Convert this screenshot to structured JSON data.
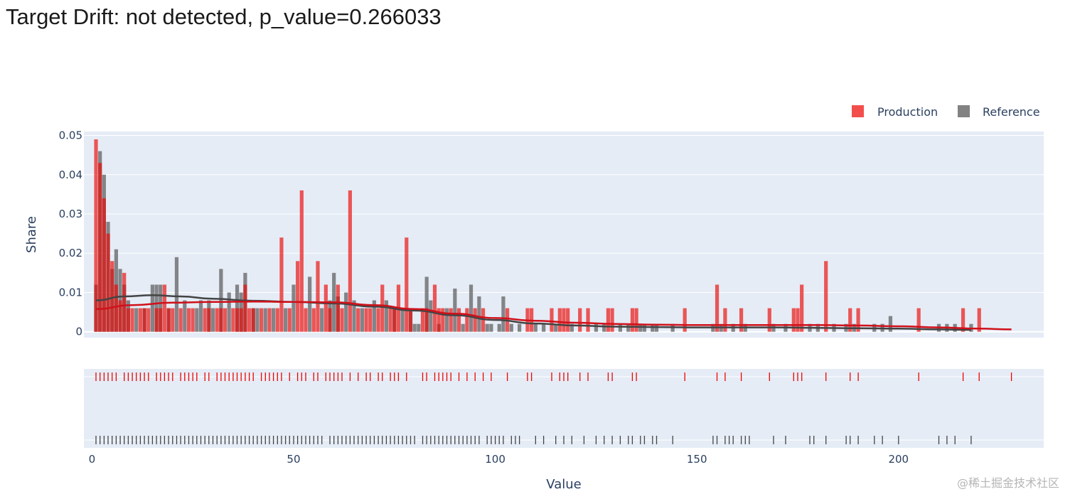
{
  "title": "Target Drift: not detected, p_value=0.266033",
  "watermark": "@稀土掘金技术社区",
  "chart_data": {
    "type": "bar",
    "xlabel": "Value",
    "ylabel": "Share",
    "xlim": [
      -2,
      236
    ],
    "ylim": [
      -0.0015,
      0.051
    ],
    "x_ticks": [
      0,
      50,
      100,
      150,
      200
    ],
    "y_ticks": [
      0,
      0.01,
      0.02,
      0.03,
      0.04,
      0.05
    ],
    "y_tick_labels": [
      "0",
      "0.01",
      "0.02",
      "0.03",
      "0.04",
      "0.05"
    ],
    "grid": true,
    "legend_position": "top-right",
    "bin_width": 0.92,
    "series": [
      {
        "name": "Production",
        "color": "#ed0400",
        "bars": [
          [
            1,
            0.049
          ],
          [
            2,
            0.043
          ],
          [
            3,
            0.034
          ],
          [
            4,
            0.025
          ],
          [
            5,
            0.018
          ],
          [
            6,
            0.012
          ],
          [
            7,
            0.008
          ],
          [
            8,
            0.015
          ],
          [
            9,
            0.006
          ],
          [
            10,
            0.006
          ],
          [
            12,
            0.006
          ],
          [
            13,
            0.006
          ],
          [
            14,
            0.006
          ],
          [
            16,
            0.006
          ],
          [
            17,
            0.006
          ],
          [
            18,
            0.012
          ],
          [
            19,
            0.006
          ],
          [
            20,
            0.006
          ],
          [
            22,
            0.006
          ],
          [
            24,
            0.006
          ],
          [
            25,
            0.006
          ],
          [
            28,
            0.006
          ],
          [
            29,
            0.006
          ],
          [
            31,
            0.006
          ],
          [
            32,
            0.006
          ],
          [
            33,
            0.006
          ],
          [
            35,
            0.006
          ],
          [
            36,
            0.006
          ],
          [
            37,
            0.006
          ],
          [
            38,
            0.012
          ],
          [
            39,
            0.006
          ],
          [
            40,
            0.006
          ],
          [
            42,
            0.006
          ],
          [
            44,
            0.006
          ],
          [
            46,
            0.006
          ],
          [
            47,
            0.024
          ],
          [
            49,
            0.006
          ],
          [
            51,
            0.018
          ],
          [
            52,
            0.036
          ],
          [
            53,
            0.006
          ],
          [
            55,
            0.006
          ],
          [
            56,
            0.018
          ],
          [
            58,
            0.012
          ],
          [
            59,
            0.006
          ],
          [
            61,
            0.012
          ],
          [
            62,
            0.006
          ],
          [
            64,
            0.036
          ],
          [
            66,
            0.006
          ],
          [
            68,
            0.006
          ],
          [
            69,
            0.006
          ],
          [
            71,
            0.006
          ],
          [
            72,
            0.012
          ],
          [
            74,
            0.006
          ],
          [
            75,
            0.006
          ],
          [
            76,
            0.012
          ],
          [
            78,
            0.024
          ],
          [
            79,
            0.006
          ],
          [
            82,
            0.006
          ],
          [
            83,
            0.006
          ],
          [
            85,
            0.012
          ],
          [
            86,
            0.006
          ],
          [
            87,
            0.006
          ],
          [
            89,
            0.006
          ],
          [
            91,
            0.006
          ],
          [
            93,
            0.006
          ],
          [
            95,
            0.006
          ],
          [
            97,
            0.006
          ],
          [
            103,
            0.006
          ],
          [
            108,
            0.006
          ],
          [
            109,
            0.006
          ],
          [
            114,
            0.006
          ],
          [
            116,
            0.006
          ],
          [
            117,
            0.006
          ],
          [
            118,
            0.006
          ],
          [
            121,
            0.006
          ],
          [
            123,
            0.006
          ],
          [
            128,
            0.006
          ],
          [
            129,
            0.006
          ],
          [
            134,
            0.006
          ],
          [
            135,
            0.006
          ],
          [
            147,
            0.006
          ],
          [
            155,
            0.012
          ],
          [
            157,
            0.006
          ],
          [
            161,
            0.006
          ],
          [
            168,
            0.006
          ],
          [
            174,
            0.006
          ],
          [
            175,
            0.006
          ],
          [
            176,
            0.012
          ],
          [
            182,
            0.018
          ],
          [
            188,
            0.006
          ],
          [
            190,
            0.006
          ],
          [
            205,
            0.006
          ],
          [
            216,
            0.006
          ],
          [
            220,
            0.006
          ]
        ],
        "kde": [
          [
            1,
            0.0058
          ],
          [
            10,
            0.0068
          ],
          [
            20,
            0.0074
          ],
          [
            30,
            0.0076
          ],
          [
            40,
            0.0077
          ],
          [
            50,
            0.0076
          ],
          [
            60,
            0.0075
          ],
          [
            70,
            0.0068
          ],
          [
            80,
            0.0058
          ],
          [
            90,
            0.0046
          ],
          [
            100,
            0.0035
          ],
          [
            110,
            0.0028
          ],
          [
            120,
            0.0023
          ],
          [
            130,
            0.002
          ],
          [
            140,
            0.0018
          ],
          [
            150,
            0.0017
          ],
          [
            160,
            0.0017
          ],
          [
            170,
            0.0017
          ],
          [
            180,
            0.0017
          ],
          [
            190,
            0.0016
          ],
          [
            200,
            0.0014
          ],
          [
            210,
            0.0011
          ],
          [
            220,
            0.0008
          ],
          [
            228,
            0.0006
          ]
        ],
        "rug": [
          1,
          2,
          3,
          4,
          5,
          6,
          8,
          9,
          10,
          11,
          12,
          13,
          14,
          16,
          17,
          18,
          19,
          20,
          22,
          23,
          24,
          25,
          26,
          28,
          29,
          31,
          32,
          33,
          34,
          35,
          36,
          37,
          38,
          39,
          40,
          42,
          43,
          44,
          45,
          46,
          47,
          49,
          51,
          52,
          53,
          55,
          56,
          58,
          59,
          60,
          61,
          62,
          64,
          66,
          68,
          69,
          71,
          72,
          74,
          75,
          76,
          78,
          82,
          83,
          85,
          86,
          87,
          88,
          89,
          91,
          93,
          95,
          97,
          99,
          103,
          108,
          109,
          114,
          116,
          117,
          118,
          121,
          123,
          128,
          129,
          134,
          135,
          147,
          155,
          157,
          161,
          168,
          174,
          175,
          176,
          182,
          188,
          190,
          205,
          216,
          220,
          228
        ]
      },
      {
        "name": "Reference",
        "color": "#4d4d4d",
        "bars": [
          [
            1,
            0.012
          ],
          [
            2,
            0.046
          ],
          [
            3,
            0.04
          ],
          [
            4,
            0.028
          ],
          [
            5,
            0.016
          ],
          [
            6,
            0.021
          ],
          [
            7,
            0.016
          ],
          [
            8,
            0.012
          ],
          [
            9,
            0.008
          ],
          [
            11,
            0.006
          ],
          [
            13,
            0.006
          ],
          [
            15,
            0.012
          ],
          [
            16,
            0.012
          ],
          [
            17,
            0.012
          ],
          [
            19,
            0.006
          ],
          [
            21,
            0.019
          ],
          [
            23,
            0.008
          ],
          [
            26,
            0.006
          ],
          [
            27,
            0.008
          ],
          [
            29,
            0.008
          ],
          [
            30,
            0.006
          ],
          [
            32,
            0.016
          ],
          [
            34,
            0.01
          ],
          [
            36,
            0.012
          ],
          [
            37,
            0.01
          ],
          [
            38,
            0.015
          ],
          [
            40,
            0.006
          ],
          [
            41,
            0.006
          ],
          [
            43,
            0.006
          ],
          [
            45,
            0.006
          ],
          [
            48,
            0.006
          ],
          [
            50,
            0.012
          ],
          [
            54,
            0.014
          ],
          [
            57,
            0.006
          ],
          [
            59,
            0.008
          ],
          [
            60,
            0.015
          ],
          [
            61,
            0.009
          ],
          [
            63,
            0.01
          ],
          [
            65,
            0.008
          ],
          [
            67,
            0.006
          ],
          [
            70,
            0.008
          ],
          [
            73,
            0.008
          ],
          [
            75,
            0.006
          ],
          [
            77,
            0.006
          ],
          [
            79,
            0.006
          ],
          [
            80,
            0.002
          ],
          [
            81,
            0.002
          ],
          [
            83,
            0.014
          ],
          [
            84,
            0.008
          ],
          [
            86,
            0.002
          ],
          [
            88,
            0.006
          ],
          [
            90,
            0.011
          ],
          [
            92,
            0.002
          ],
          [
            94,
            0.012
          ],
          [
            96,
            0.009
          ],
          [
            98,
            0.002
          ],
          [
            99,
            0.002
          ],
          [
            101,
            0.002
          ],
          [
            102,
            0.009
          ],
          [
            104,
            0.002
          ],
          [
            106,
            0.002
          ],
          [
            110,
            0.002
          ],
          [
            112,
            0.002
          ],
          [
            115,
            0.002
          ],
          [
            119,
            0.002
          ],
          [
            125,
            0.002
          ],
          [
            127,
            0.002
          ],
          [
            131,
            0.002
          ],
          [
            133,
            0.002
          ],
          [
            136,
            0.002
          ],
          [
            137,
            0.002
          ],
          [
            139,
            0.002
          ],
          [
            140,
            0.002
          ],
          [
            144,
            0.002
          ],
          [
            154,
            0.002
          ],
          [
            156,
            0.002
          ],
          [
            159,
            0.002
          ],
          [
            162,
            0.002
          ],
          [
            169,
            0.002
          ],
          [
            172,
            0.002
          ],
          [
            178,
            0.002
          ],
          [
            180,
            0.002
          ],
          [
            184,
            0.002
          ],
          [
            187,
            0.002
          ],
          [
            189,
            0.002
          ],
          [
            194,
            0.002
          ],
          [
            196,
            0.002
          ],
          [
            198,
            0.004
          ],
          [
            210,
            0.002
          ],
          [
            212,
            0.002
          ],
          [
            214,
            0.002
          ],
          [
            218,
            0.002
          ]
        ],
        "kde": [
          [
            1,
            0.008
          ],
          [
            8,
            0.009
          ],
          [
            15,
            0.0093
          ],
          [
            22,
            0.009
          ],
          [
            30,
            0.0084
          ],
          [
            40,
            0.0079
          ],
          [
            50,
            0.0076
          ],
          [
            60,
            0.0072
          ],
          [
            70,
            0.0064
          ],
          [
            80,
            0.0054
          ],
          [
            90,
            0.0042
          ],
          [
            100,
            0.003
          ],
          [
            110,
            0.0021
          ],
          [
            120,
            0.0016
          ],
          [
            130,
            0.0013
          ],
          [
            140,
            0.0012
          ],
          [
            150,
            0.0011
          ],
          [
            160,
            0.0011
          ],
          [
            170,
            0.0011
          ],
          [
            180,
            0.001
          ],
          [
            190,
            0.0009
          ],
          [
            200,
            0.0008
          ],
          [
            210,
            0.0006
          ],
          [
            218,
            0.0005
          ]
        ],
        "rug": [
          1,
          2,
          3,
          4,
          5,
          6,
          7,
          8,
          9,
          10,
          11,
          12,
          13,
          14,
          15,
          16,
          17,
          18,
          19,
          20,
          21,
          22,
          23,
          24,
          25,
          26,
          27,
          28,
          29,
          30,
          31,
          32,
          33,
          34,
          35,
          36,
          37,
          38,
          39,
          40,
          41,
          42,
          43,
          44,
          45,
          46,
          47,
          48,
          49,
          50,
          51,
          52,
          53,
          54,
          55,
          56,
          57,
          59,
          60,
          61,
          62,
          63,
          64,
          65,
          66,
          67,
          68,
          69,
          70,
          71,
          72,
          73,
          74,
          75,
          76,
          77,
          78,
          79,
          80,
          82,
          83,
          84,
          85,
          86,
          87,
          88,
          89,
          90,
          91,
          92,
          93,
          94,
          95,
          96,
          98,
          99,
          100,
          101,
          102,
          104,
          105,
          106,
          110,
          112,
          115,
          117,
          119,
          122,
          125,
          127,
          129,
          131,
          133,
          134,
          136,
          137,
          139,
          140,
          144,
          154,
          155,
          157,
          158,
          159,
          161,
          162,
          163,
          169,
          172,
          178,
          179,
          182,
          187,
          188,
          190,
          194,
          196,
          200,
          210,
          212,
          214,
          218
        ]
      }
    ]
  }
}
